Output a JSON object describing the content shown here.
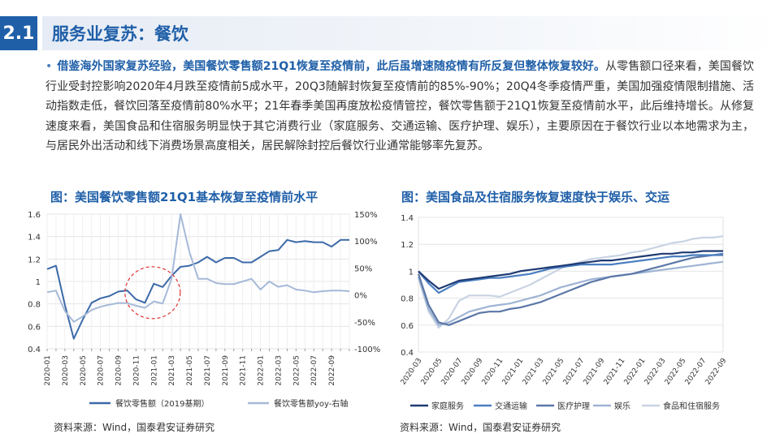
{
  "header": {
    "badge": "2.1",
    "title": "服务业复苏：餐饮"
  },
  "body_text": {
    "lead": "借鉴海外国家复苏经验，美国餐饮零售额21Q1恢复至疫情前，此后虽增速随疫情有所反复但整体恢复较好。",
    "rest": "从零售额口径来看，美国餐饮行业受封控影响2020年4月跌至疫情前5成水平，20Q3随解封恢复至疫情前的85%-90%；20Q4冬季疫情严重，美国加强疫情限制措施、活动指数走低，餐饮回落至疫情前80%水平；21年春季美国再度放松疫情管控，餐饮零售额于21Q1恢复至疫情前水平，此后维持增长。从修复速度来看，美国食品和住宿服务明显快于其它消费行业（家庭服务、交通运输、医疗护理、娱乐），主要原因在于餐饮行业以本地需求为主，与居民外出活动和线下消费场景高度相关，居民解除封控后餐饮行业通常能够率先复苏。"
  },
  "figures": {
    "left_title": "图：美国餐饮零售额21Q1基本恢复至疫情前水平",
    "right_title": "图：美国食品及住宿服务恢复速度快于娱乐、交运",
    "left_source": "资料来源：Wind，国泰君安证券研究",
    "right_source": "资料来源：Wind，国泰君安证券研究"
  },
  "chart_data": [
    {
      "type": "line",
      "title": "图：美国餐饮零售额21Q1基本恢复至疫情前水平",
      "x": [
        "2020-01",
        "2020-02",
        "2020-03",
        "2020-04",
        "2020-05",
        "2020-06",
        "2020-07",
        "2020-08",
        "2020-09",
        "2020-10",
        "2020-11",
        "2020-12",
        "2021-01",
        "2021-02",
        "2021-03",
        "2021-04",
        "2021-05",
        "2021-06",
        "2021-07",
        "2021-08",
        "2021-09",
        "2021-10",
        "2021-11",
        "2021-12",
        "2022-01",
        "2022-02",
        "2022-03",
        "2022-04",
        "2022-05",
        "2022-06",
        "2022-07",
        "2022-08",
        "2022-09",
        "2022-10",
        "2022-11"
      ],
      "x_tick_labels": [
        "2020-01",
        "2020-03",
        "2020-05",
        "2020-07",
        "2020-09",
        "2020-11",
        "2021-01",
        "2021-03",
        "2021-05",
        "2021-07",
        "2021-09",
        "2021-11",
        "2022-01",
        "2022-03",
        "2022-05",
        "2022-07",
        "2022-09"
      ],
      "y_left_ticks": [
        "0.4",
        "0.6",
        "0.8",
        "1",
        "1.2",
        "1.4",
        "1.6"
      ],
      "y_right_ticks": [
        "-100%",
        "-50%",
        "0%",
        "50%",
        "100%",
        "150%"
      ],
      "ylim_left": [
        0.4,
        1.6
      ],
      "ylim_right": [
        -100,
        150
      ],
      "grid": true,
      "legend_position": "bottom",
      "annotation": "red dashed circle around 2020-10 to 2021-02",
      "series": [
        {
          "name": "餐饮零售额（2019基期）",
          "axis": "left",
          "color": "#3c6aa8",
          "values": [
            1.11,
            1.14,
            0.79,
            0.49,
            0.66,
            0.81,
            0.85,
            0.87,
            0.91,
            0.92,
            0.84,
            0.81,
            0.98,
            0.95,
            1.05,
            1.13,
            1.14,
            1.17,
            1.22,
            1.17,
            1.21,
            1.21,
            1.17,
            1.17,
            1.22,
            1.27,
            1.28,
            1.37,
            1.35,
            1.36,
            1.35,
            1.35,
            1.31,
            1.37,
            1.37
          ]
        },
        {
          "name": "餐饮零售额yoy-右轴",
          "axis": "right",
          "color": "#a6b9d8",
          "values": [
            5,
            8,
            -30,
            -50,
            -40,
            -28,
            -22,
            -18,
            -15,
            -15,
            -20,
            -24,
            -12,
            -16,
            30,
            150,
            80,
            30,
            30,
            22,
            20,
            20,
            25,
            30,
            10,
            25,
            15,
            18,
            10,
            8,
            5,
            7,
            8,
            8,
            7
          ]
        }
      ]
    },
    {
      "type": "line",
      "title": "图：美国食品及住宿服务恢复速度快于娱乐、交运",
      "x": [
        "2020-03",
        "2020-04",
        "2020-05",
        "2020-06",
        "2020-07",
        "2020-08",
        "2020-09",
        "2020-10",
        "2020-11",
        "2020-12",
        "2021-01",
        "2021-02",
        "2021-03",
        "2021-04",
        "2021-05",
        "2021-06",
        "2021-07",
        "2021-08",
        "2021-09",
        "2021-10",
        "2021-11",
        "2021-12",
        "2022-01",
        "2022-02",
        "2022-03",
        "2022-04",
        "2022-05",
        "2022-06",
        "2022-07",
        "2022-08",
        "2022-09"
      ],
      "x_tick_labels": [
        "2020-03",
        "2020-05",
        "2020-07",
        "2020-09",
        "2020-11",
        "2021-01",
        "2021-03",
        "2021-05",
        "2021-07",
        "2021-09",
        "2021-11",
        "2022-01",
        "2022-03",
        "2022-05",
        "2022-07",
        "2022-09"
      ],
      "y_ticks": [
        "0.4",
        "0.6",
        "0.8",
        "1",
        "1.2",
        "1.4"
      ],
      "ylim": [
        0.4,
        1.4
      ],
      "grid": true,
      "legend_position": "bottom",
      "series": [
        {
          "name": "家庭服务",
          "color": "#1f3b73",
          "values": [
            1.0,
            0.93,
            0.87,
            0.9,
            0.93,
            0.94,
            0.95,
            0.96,
            0.97,
            0.98,
            1.0,
            1.01,
            1.02,
            1.03,
            1.04,
            1.05,
            1.06,
            1.07,
            1.08,
            1.08,
            1.09,
            1.1,
            1.11,
            1.12,
            1.13,
            1.13,
            1.14,
            1.14,
            1.15,
            1.15,
            1.15
          ]
        },
        {
          "name": "交通运输",
          "color": "#4a7fc1",
          "values": [
            1.0,
            0.91,
            0.84,
            0.88,
            0.92,
            0.93,
            0.94,
            0.95,
            0.95,
            0.96,
            0.97,
            0.98,
            1.0,
            1.02,
            1.03,
            1.04,
            1.05,
            1.05,
            1.05,
            1.05,
            1.06,
            1.07,
            1.08,
            1.09,
            1.1,
            1.11,
            1.11,
            1.12,
            1.12,
            1.12,
            1.13
          ]
        },
        {
          "name": "医疗护理",
          "color": "#5b77a7",
          "values": [
            0.98,
            0.75,
            0.62,
            0.6,
            0.63,
            0.66,
            0.69,
            0.7,
            0.7,
            0.72,
            0.73,
            0.75,
            0.77,
            0.8,
            0.83,
            0.86,
            0.89,
            0.92,
            0.94,
            0.96,
            0.97,
            0.98,
            1.0,
            1.02,
            1.04,
            1.06,
            1.08,
            1.1,
            1.11,
            1.12,
            1.12
          ]
        },
        {
          "name": "娱乐",
          "color": "#9fb4d4",
          "values": [
            0.96,
            0.72,
            0.6,
            0.62,
            0.66,
            0.7,
            0.72,
            0.74,
            0.75,
            0.76,
            0.78,
            0.8,
            0.82,
            0.85,
            0.88,
            0.9,
            0.92,
            0.94,
            0.95,
            0.96,
            0.97,
            0.98,
            0.99,
            1.0,
            1.01,
            1.02,
            1.03,
            1.04,
            1.05,
            1.06,
            1.07
          ]
        },
        {
          "name": "食品和住宿服务",
          "color": "#c9d3e3",
          "values": [
            0.95,
            0.7,
            0.58,
            0.65,
            0.78,
            0.82,
            0.82,
            0.82,
            0.81,
            0.84,
            0.87,
            0.9,
            0.94,
            0.98,
            1.02,
            1.05,
            1.07,
            1.09,
            1.1,
            1.11,
            1.12,
            1.14,
            1.15,
            1.17,
            1.19,
            1.21,
            1.22,
            1.24,
            1.25,
            1.25,
            1.26
          ]
        }
      ]
    }
  ]
}
